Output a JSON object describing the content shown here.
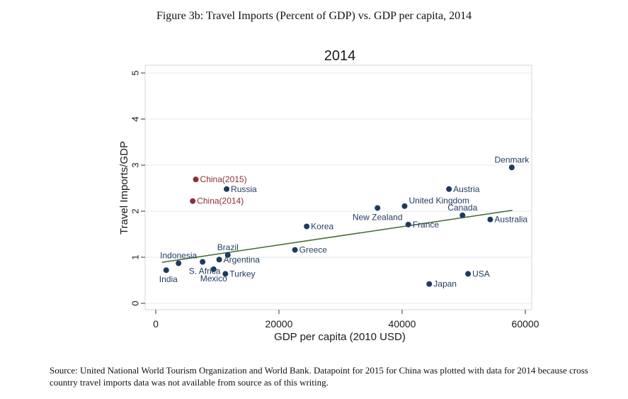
{
  "figure_title": "Figure 3b:  Travel Imports (Percent of GDP) vs. GDP per capita, 2014",
  "source_note": "Source:  United National World Tourism Organization and World Bank.  Datapoint for 2015 for China was plotted with data for 2014 because cross country travel imports data was not available from source as of this writing.",
  "chart_data": {
    "type": "scatter",
    "title": "2014",
    "xlabel": "GDP per capita (2010 USD)",
    "ylabel": "Travel Imports/GDP",
    "xlim": [
      0,
      60000
    ],
    "ylim": [
      0,
      5
    ],
    "xticks": [
      0,
      20000,
      40000,
      60000
    ],
    "xtick_labels": [
      "0",
      "20000",
      "40000",
      "60000"
    ],
    "yticks": [
      0,
      1,
      2,
      3,
      4,
      5
    ],
    "ytick_labels": [
      "0",
      "1",
      "2",
      "3",
      "4",
      "5"
    ],
    "grid": "horizontal",
    "colors": {
      "point": "#1f3a5f",
      "china": "#8b2e35",
      "fit": "#3e6b2e",
      "background": "#ffffff"
    },
    "points": [
      {
        "label": "India",
        "x": 1700,
        "y": 0.72,
        "china": false,
        "label_pos": "below-left"
      },
      {
        "label": "Indonesia",
        "x": 3700,
        "y": 0.87,
        "china": false,
        "label_pos": "above"
      },
      {
        "label": "S. Africa",
        "x": 7600,
        "y": 0.9,
        "china": false,
        "label_pos": "below-left"
      },
      {
        "label": "Mexico",
        "x": 9400,
        "y": 0.74,
        "china": false,
        "label_pos": "below"
      },
      {
        "label": "Argentina",
        "x": 10300,
        "y": 0.95,
        "china": false,
        "label_pos": "right"
      },
      {
        "label": "Brazil",
        "x": 11700,
        "y": 1.05,
        "china": false,
        "label_pos": "above"
      },
      {
        "label": "Turkey",
        "x": 11300,
        "y": 0.64,
        "china": false,
        "label_pos": "right"
      },
      {
        "label": "Russia",
        "x": 11500,
        "y": 2.48,
        "china": false,
        "label_pos": "right"
      },
      {
        "label": "China(2015)",
        "x": 6500,
        "y": 2.69,
        "china": true,
        "label_pos": "right"
      },
      {
        "label": "China(2014)",
        "x": 6000,
        "y": 2.22,
        "china": true,
        "label_pos": "right"
      },
      {
        "label": "Greece",
        "x": 22600,
        "y": 1.16,
        "china": false,
        "label_pos": "right"
      },
      {
        "label": "Korea",
        "x": 24500,
        "y": 1.67,
        "china": false,
        "label_pos": "right"
      },
      {
        "label": "New Zealand",
        "x": 36000,
        "y": 2.07,
        "china": false,
        "label_pos": "below"
      },
      {
        "label": "United Kingdom",
        "x": 40400,
        "y": 2.11,
        "china": false,
        "label_pos": "above-right"
      },
      {
        "label": "France",
        "x": 41000,
        "y": 1.71,
        "china": false,
        "label_pos": "right"
      },
      {
        "label": "Austria",
        "x": 47600,
        "y": 2.48,
        "china": false,
        "label_pos": "right"
      },
      {
        "label": "Canada",
        "x": 49800,
        "y": 1.91,
        "china": false,
        "label_pos": "above"
      },
      {
        "label": "Australia",
        "x": 54300,
        "y": 1.82,
        "china": false,
        "label_pos": "right"
      },
      {
        "label": "Denmark",
        "x": 57800,
        "y": 2.95,
        "china": false,
        "label_pos": "above"
      },
      {
        "label": "USA",
        "x": 50700,
        "y": 0.64,
        "china": false,
        "label_pos": "right"
      },
      {
        "label": "Japan",
        "x": 44400,
        "y": 0.42,
        "china": false,
        "label_pos": "right"
      }
    ],
    "fit_line": {
      "x": [
        1000,
        57900
      ],
      "y": [
        0.89,
        2.02
      ]
    }
  }
}
